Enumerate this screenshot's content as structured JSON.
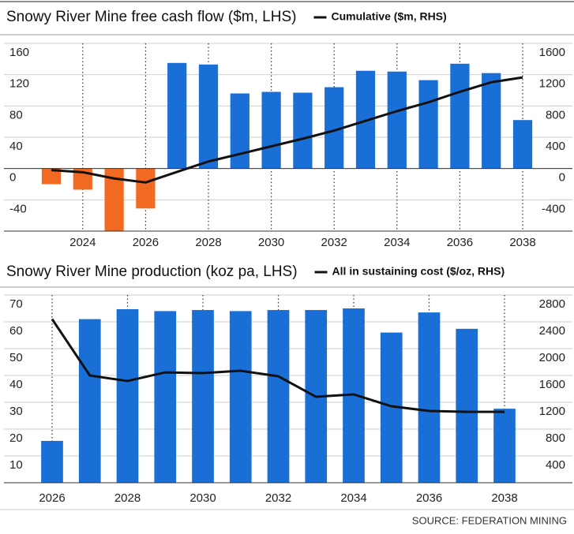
{
  "chart_data": [
    {
      "type": "bar",
      "title": "Snowy River Mine free cash flow ($m, LHS)",
      "categories": [
        null,
        2024,
        null,
        2026,
        null,
        2028,
        null,
        2030,
        null,
        2032,
        null,
        2034,
        null,
        2036,
        null,
        2038
      ],
      "series": [
        {
          "color": "#1a6fd6",
          "negative_color": "#f26a21",
          "values": [
            -20,
            -27,
            -80,
            -51,
            135,
            133,
            96,
            98,
            97,
            104,
            125,
            124,
            113,
            134,
            122,
            62
          ]
        },
        {
          "name": "Cumulative ($m, RHS)",
          "type": "line",
          "axis": "y2",
          "color": "#111111",
          "values": [
            -20,
            -47,
            -127,
            -178,
            -43,
            90,
            186,
            284,
            381,
            485,
            610,
            734,
            847,
            981,
            1103,
            1165
          ]
        }
      ],
      "ylim": [
        -80,
        160
      ],
      "yticks": [
        -40,
        0,
        40,
        80,
        120,
        160
      ],
      "y2lim": [
        -800,
        1600
      ],
      "y2ticks": [
        -400,
        0,
        400,
        800,
        1200,
        1600
      ],
      "grid": true
    },
    {
      "type": "bar",
      "title": "Snowy River Mine production (koz pa, LHS)",
      "categories": [
        2026,
        null,
        2028,
        null,
        2030,
        null,
        2032,
        null,
        2034,
        null,
        2036,
        null,
        2038
      ],
      "series": [
        {
          "color": "#1a6fd6",
          "values": [
            15.6,
            61,
            64.7,
            64,
            64.4,
            64,
            64.4,
            64.4,
            65,
            56,
            63.5,
            57.4,
            27.6
          ]
        },
        {
          "name": "All in sustaining cost ($/oz, RHS)",
          "type": "line",
          "axis": "y2",
          "color": "#111111",
          "values": [
            2440,
            1600,
            1517,
            1646,
            1635,
            1670,
            1588,
            1282,
            1317,
            1141,
            1070,
            1058,
            1058
          ]
        }
      ],
      "ylim": [
        0,
        70
      ],
      "yticks": [
        10,
        20,
        30,
        40,
        50,
        60,
        70
      ],
      "y2lim": [
        0,
        2800
      ],
      "y2ticks": [
        400,
        800,
        1200,
        1600,
        2000,
        2400,
        2800
      ],
      "grid": true
    }
  ],
  "source": "SOURCE: FEDERATION MINING"
}
